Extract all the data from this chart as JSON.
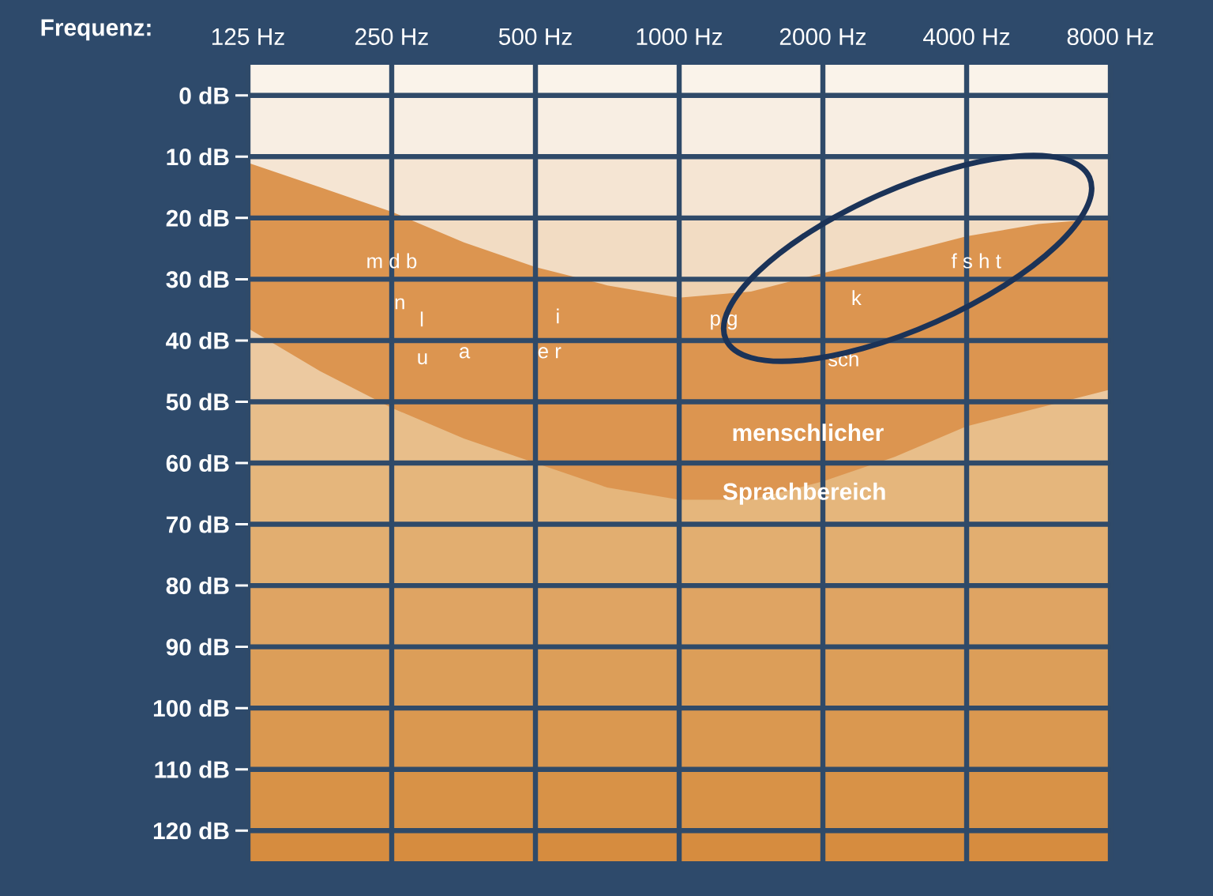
{
  "chart_data": {
    "type": "area",
    "xlabel": "Frequenz:",
    "log": "x",
    "grid": true,
    "xlim": [
      125,
      8000
    ],
    "ylim": [
      125,
      -5
    ],
    "xticks": [
      {
        "value": 125,
        "label": "125 Hz"
      },
      {
        "value": 250,
        "label": "250 Hz"
      },
      {
        "value": 500,
        "label": "500 Hz"
      },
      {
        "value": 1000,
        "label": "1000 Hz"
      },
      {
        "value": 2000,
        "label": "2000 Hz"
      },
      {
        "value": 4000,
        "label": "4000 Hz"
      },
      {
        "value": 8000,
        "label": "8000 Hz"
      }
    ],
    "yticks": [
      {
        "value": 0,
        "label": "0 dB"
      },
      {
        "value": 10,
        "label": "10 dB"
      },
      {
        "value": 20,
        "label": "20 dB"
      },
      {
        "value": 30,
        "label": "30 dB"
      },
      {
        "value": 40,
        "label": "40 dB"
      },
      {
        "value": 50,
        "label": "50 dB"
      },
      {
        "value": 60,
        "label": "60 dB"
      },
      {
        "value": 70,
        "label": "70 dB"
      },
      {
        "value": 80,
        "label": "80 dB"
      },
      {
        "value": 90,
        "label": "90 dB"
      },
      {
        "value": 100,
        "label": "100 dB"
      },
      {
        "value": 110,
        "label": "110 dB"
      },
      {
        "value": 120,
        "label": "120 dB"
      }
    ],
    "series": [
      {
        "color": "#dc9550",
        "values": [
          null,
          null,
          null,
          null,
          null,
          null,
          null,
          null,
          null,
          null,
          null,
          null,
          null
        ],
        "x": [
          125,
          177,
          250,
          354,
          500,
          707,
          1000,
          1414,
          2000,
          2828,
          4000,
          5657,
          8000
        ],
        "upper": [
          11,
          15,
          19,
          24,
          28,
          31,
          33,
          32,
          29,
          26,
          23,
          21,
          20
        ],
        "lower": [
          38,
          45,
          51,
          56,
          60,
          64,
          66,
          66,
          63,
          59,
          54,
          51,
          48
        ]
      }
    ],
    "bands": [
      {
        "axis": "y",
        "from": -5,
        "to": 0,
        "color": "#faf3ea"
      },
      {
        "axis": "y",
        "from": 0,
        "to": 10,
        "color": "#f8eee3"
      },
      {
        "axis": "y",
        "from": 10,
        "to": 20,
        "color": "#f5e5d3"
      },
      {
        "axis": "y",
        "from": 20,
        "to": 30,
        "color": "#f2dcc3"
      },
      {
        "axis": "y",
        "from": 30,
        "to": 40,
        "color": "#efd2b0"
      },
      {
        "axis": "y",
        "from": 40,
        "to": 50,
        "color": "#ecc9a0"
      },
      {
        "axis": "y",
        "from": 50,
        "to": 60,
        "color": "#e8be8a"
      },
      {
        "axis": "y",
        "from": 60,
        "to": 70,
        "color": "#e5b67c"
      },
      {
        "axis": "y",
        "from": 70,
        "to": 80,
        "color": "#e2ae70"
      },
      {
        "axis": "y",
        "from": 80,
        "to": 90,
        "color": "#dfa463"
      },
      {
        "axis": "y",
        "from": 90,
        "to": 100,
        "color": "#dc9e59"
      },
      {
        "axis": "y",
        "from": 100,
        "to": 110,
        "color": "#da9850"
      },
      {
        "axis": "y",
        "from": 110,
        "to": 120,
        "color": "#d89247"
      },
      {
        "axis": "y",
        "from": 120,
        "to": 125,
        "color": "#d68c3f"
      }
    ],
    "annotations": [
      "m d b",
      "n",
      "l",
      "u",
      "a",
      "i",
      "e r",
      "p g",
      "k",
      "sch",
      "f s h t",
      "menschlicher",
      "Sprachbereich"
    ]
  }
}
